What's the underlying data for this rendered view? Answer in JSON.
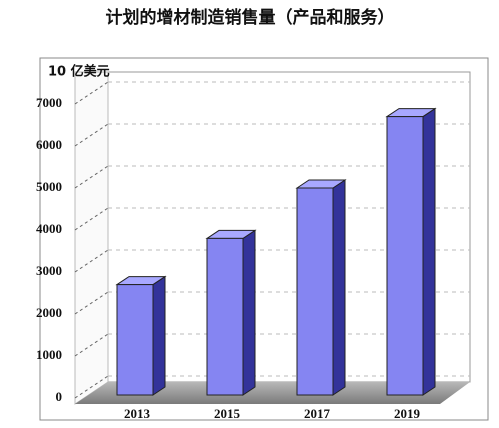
{
  "chart_data": {
    "type": "bar",
    "title": "计划的增材制造销售量（产品和服务）",
    "y_label": "10 亿美元",
    "categories": [
      "2013",
      "2015",
      "2017",
      "2019"
    ],
    "values": [
      2700,
      3800,
      5000,
      6700
    ],
    "color": "#8585f2",
    "ylim": [
      0,
      7000
    ],
    "yticks": [
      0,
      1000,
      2000,
      3000,
      4000,
      5000,
      6000,
      7000
    ],
    "grid": true
  }
}
